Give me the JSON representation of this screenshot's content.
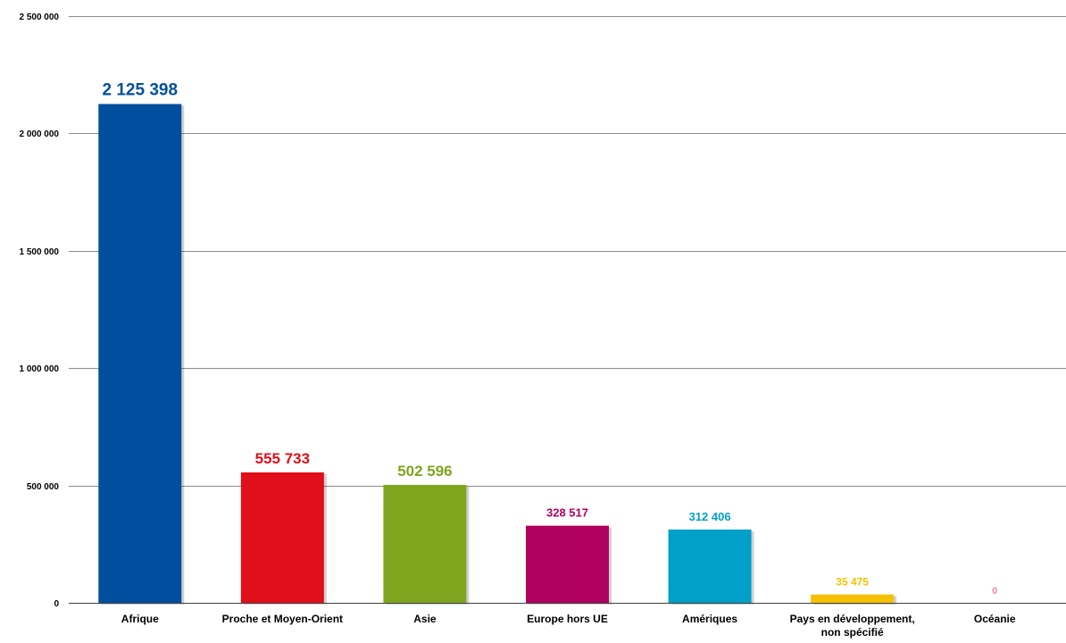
{
  "chart_data": {
    "type": "bar",
    "title": "",
    "xlabel": "",
    "ylabel": "",
    "ylim": [
      0,
      2500000
    ],
    "grid": true,
    "y_ticks": [
      0,
      500000,
      1000000,
      1500000,
      2000000,
      2500000
    ],
    "y_tick_labels": [
      "0",
      "500 000",
      "1 000 000",
      "1 500 000",
      "2 000 000",
      "2 500 000"
    ],
    "categories": [
      {
        "label": "Afrique",
        "value": 2125398,
        "value_label": "2 125 398",
        "color": "#004f9f"
      },
      {
        "label": "Proche et Moyen-Orient",
        "value": 555733,
        "value_label": "555 733",
        "color": "#e10f1a"
      },
      {
        "label": "Asie",
        "value": 502596,
        "value_label": "502 596",
        "color": "#7fa51f"
      },
      {
        "label": "Europe hors UE",
        "value": 328517,
        "value_label": "328 517",
        "color": "#b0005f"
      },
      {
        "label": "Amériques",
        "value": 312406,
        "value_label": "312 406",
        "color": "#00a0c8"
      },
      {
        "label": "Pays en développement, non spécifié",
        "value": 35475,
        "value_label": "35 475",
        "color": "#f5c000"
      },
      {
        "label": "Océanie",
        "value": 0,
        "value_label": "0",
        "color": "#f08a96"
      }
    ]
  }
}
